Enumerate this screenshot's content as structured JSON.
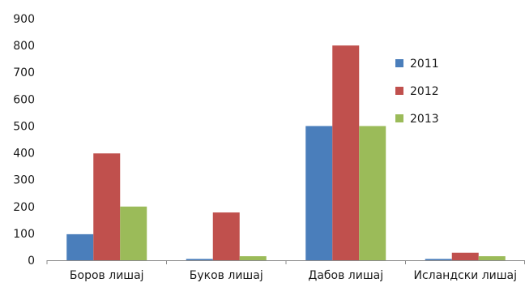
{
  "chart_data": {
    "type": "bar",
    "categories": [
      "Боров лишај",
      "Буков лишај",
      "Дабов лишај",
      "Исландски лишај"
    ],
    "series": [
      {
        "name": "2011",
        "color": "#4a7ebb",
        "values": [
          97,
          5,
          500,
          5
        ]
      },
      {
        "name": "2012",
        "color": "#c0504d",
        "values": [
          398,
          178,
          800,
          28
        ]
      },
      {
        "name": "2013",
        "color": "#9bbb59",
        "values": [
          200,
          15,
          500,
          15
        ]
      }
    ],
    "ylim": [
      0,
      900
    ],
    "yticks": [
      0,
      100,
      200,
      300,
      400,
      500,
      600,
      700,
      800,
      900
    ],
    "grid": false,
    "legend_position": "right"
  }
}
